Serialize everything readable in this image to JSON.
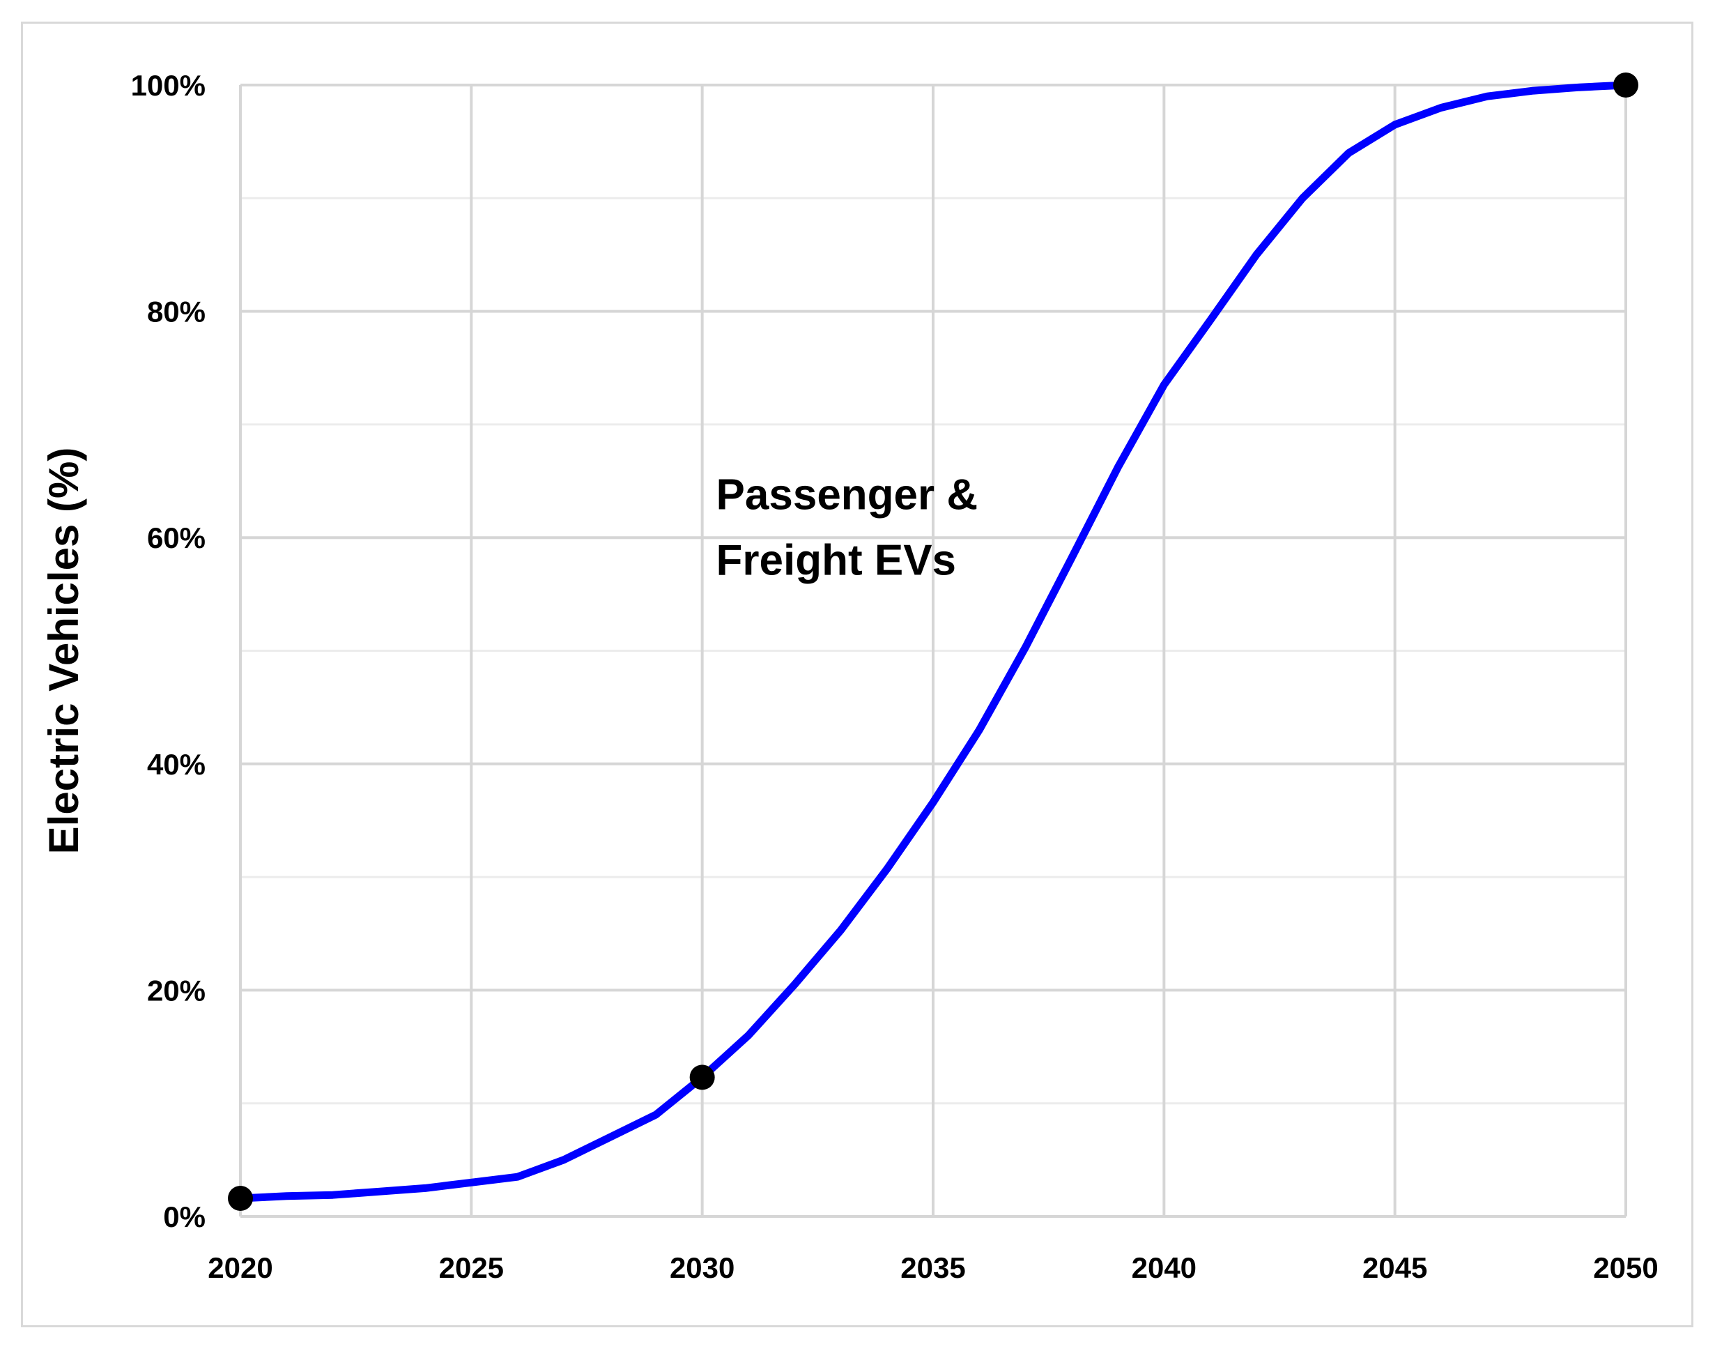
{
  "chart_data": {
    "type": "line",
    "title": "",
    "xlabel": "",
    "ylabel": "Electric Vehicles (%)",
    "xlim": [
      2020,
      2050
    ],
    "ylim": [
      0,
      100
    ],
    "x_ticks": [
      2020,
      2025,
      2030,
      2035,
      2040,
      2045,
      2050
    ],
    "x_tick_labels": [
      "2020",
      "2025",
      "2030",
      "2035",
      "2040",
      "2045",
      "2050"
    ],
    "y_ticks": [
      0,
      20,
      40,
      60,
      80,
      100
    ],
    "y_tick_labels": [
      "0%",
      "20%",
      "40%",
      "60%",
      "80%",
      "100%"
    ],
    "y_minor_ticks": [
      10,
      30,
      50,
      70,
      90
    ],
    "grid": true,
    "legend": "none",
    "series": [
      {
        "color": "#0000ff",
        "x": [
          2020,
          2021,
          2022,
          2023,
          2024,
          2025,
          2026,
          2027,
          2028,
          2029,
          2030,
          2031,
          2032,
          2033,
          2034,
          2035,
          2036,
          2037,
          2038,
          2039,
          2040,
          2041,
          2042,
          2043,
          2044,
          2045,
          2046,
          2047,
          2048,
          2049,
          2050
        ],
        "y": [
          1.6,
          1.8,
          1.9,
          2.2,
          2.5,
          3.0,
          3.5,
          5.0,
          7.0,
          9.0,
          12.3,
          16.0,
          20.5,
          25.3,
          30.7,
          36.6,
          43.0,
          50.3,
          58.2,
          66.2,
          73.5,
          79.2,
          85.0,
          90.0,
          94.0,
          96.5,
          98.0,
          99.0,
          99.5,
          99.8,
          100.0
        ]
      }
    ],
    "markers": [
      {
        "x": 2020,
        "y": 1.6,
        "color": "#000000"
      },
      {
        "x": 2030,
        "y": 12.3,
        "color": "#000000"
      },
      {
        "x": 2050,
        "y": 100.0,
        "color": "#000000"
      }
    ],
    "annotations": [
      {
        "lines": [
          "Passenger &",
          "Freight EVs"
        ],
        "x": 2030.3,
        "y": 62.5
      }
    ]
  }
}
